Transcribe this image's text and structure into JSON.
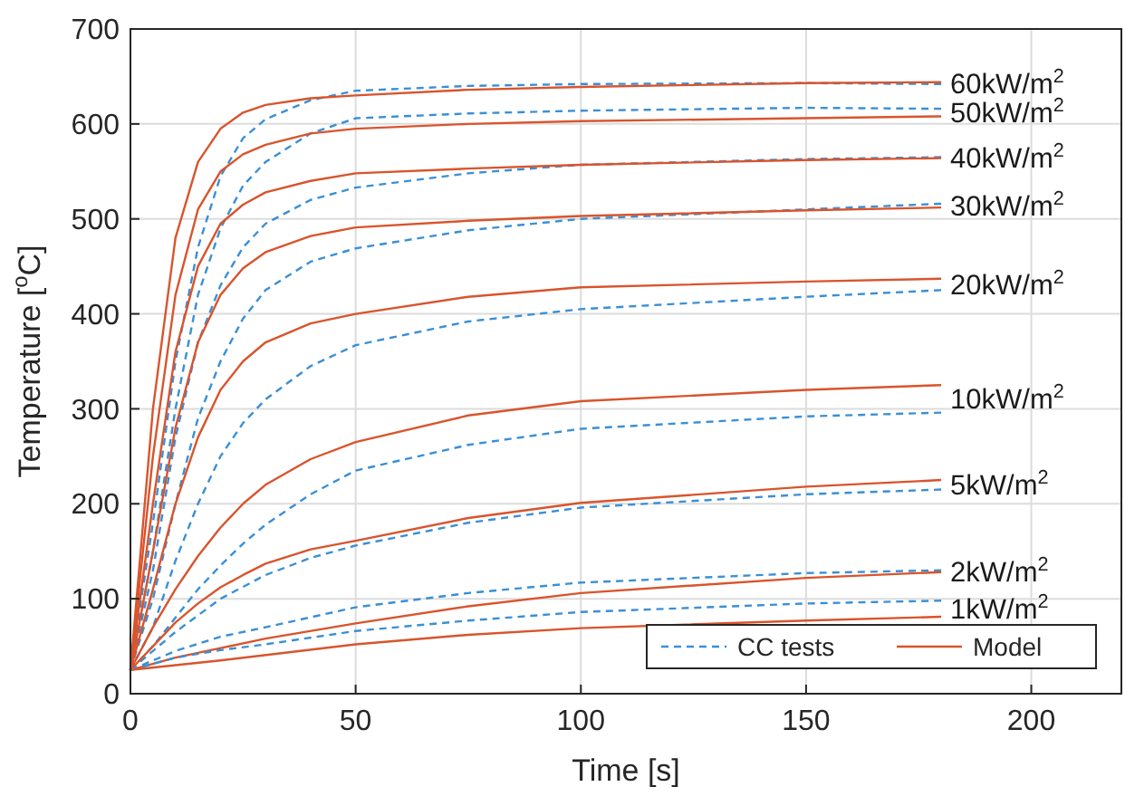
{
  "chart_data": {
    "type": "line",
    "xlabel": "Time [s]",
    "ylabel": "Temperature [$^{o}$C]",
    "xlim": [
      0,
      220
    ],
    "xticks": [
      0,
      50,
      100,
      150,
      200
    ],
    "ylim": [
      0,
      700
    ],
    "yticks": [
      0,
      100,
      200,
      300,
      400,
      500,
      600,
      700
    ],
    "grid": true,
    "legend": "bottom right",
    "marker": "none",
    "series": [
      {
        "name": "CC tests",
        "color": "#3a8fd6",
        "line_style": "dashed",
        "x": [
          0,
          5,
          10,
          15,
          20,
          25,
          30,
          40,
          50,
          75,
          100,
          150,
          180
        ],
        "values": [
          25,
          180,
          350,
          470,
          545,
          585,
          605,
          625,
          635,
          640,
          642,
          643,
          642
        ]
      },
      {
        "name": "Model",
        "color": "#d9542c",
        "line_style": "solid",
        "x": [
          0,
          5,
          10,
          15,
          20,
          25,
          30,
          40,
          50,
          75,
          100,
          125,
          150,
          180
        ],
        "values": [
          25,
          300,
          480,
          560,
          595,
          612,
          620,
          627,
          630,
          636,
          639,
          641,
          643,
          644
        ]
      },
      {
        "color": "#3a8fd6",
        "line_style": "dashed",
        "x": [
          0,
          5,
          10,
          15,
          20,
          25,
          30,
          40,
          50,
          75,
          100,
          150,
          180
        ],
        "values": [
          25,
          150,
          300,
          420,
          490,
          535,
          560,
          590,
          606,
          611,
          614,
          617,
          616
        ]
      },
      {
        "color": "#d9542c",
        "line_style": "solid",
        "x": [
          0,
          5,
          10,
          15,
          20,
          25,
          30,
          40,
          50,
          75,
          100,
          150,
          180
        ],
        "values": [
          25,
          250,
          420,
          510,
          550,
          568,
          578,
          590,
          595,
          600,
          603,
          606,
          608
        ]
      },
      {
        "color": "#3a8fd6",
        "line_style": "dashed",
        "x": [
          0,
          5,
          10,
          15,
          20,
          25,
          30,
          40,
          50,
          75,
          100,
          150,
          180
        ],
        "values": [
          25,
          130,
          270,
          370,
          430,
          470,
          495,
          520,
          533,
          548,
          557,
          563,
          565
        ]
      },
      {
        "color": "#d9542c",
        "line_style": "solid",
        "x": [
          0,
          5,
          10,
          15,
          20,
          25,
          30,
          40,
          50,
          75,
          100,
          150,
          180
        ],
        "values": [
          25,
          200,
          360,
          450,
          495,
          515,
          528,
          540,
          548,
          553,
          557,
          562,
          564
        ]
      },
      {
        "color": "#3a8fd6",
        "line_style": "dashed",
        "x": [
          0,
          5,
          10,
          15,
          20,
          25,
          30,
          40,
          50,
          75,
          100,
          150,
          180
        ],
        "values": [
          25,
          100,
          200,
          290,
          350,
          395,
          425,
          455,
          469,
          488,
          500,
          510,
          516
        ]
      },
      {
        "color": "#d9542c",
        "line_style": "solid",
        "x": [
          0,
          5,
          10,
          15,
          20,
          25,
          30,
          40,
          50,
          75,
          100,
          150,
          180
        ],
        "values": [
          25,
          150,
          280,
          370,
          420,
          448,
          465,
          482,
          491,
          498,
          503,
          509,
          512
        ]
      },
      {
        "color": "#3a8fd6",
        "line_style": "dashed",
        "x": [
          0,
          5,
          10,
          15,
          20,
          25,
          30,
          40,
          50,
          75,
          100,
          150,
          180
        ],
        "values": [
          25,
          70,
          140,
          200,
          250,
          285,
          310,
          345,
          367,
          392,
          405,
          418,
          425
        ]
      },
      {
        "color": "#d9542c",
        "line_style": "solid",
        "x": [
          0,
          5,
          10,
          15,
          20,
          25,
          30,
          40,
          50,
          75,
          100,
          150,
          180
        ],
        "values": [
          25,
          110,
          200,
          270,
          320,
          350,
          370,
          390,
          400,
          418,
          428,
          434,
          437
        ]
      },
      {
        "color": "#3a8fd6",
        "line_style": "dashed",
        "x": [
          0,
          5,
          10,
          15,
          20,
          25,
          30,
          40,
          50,
          75,
          100,
          150,
          180
        ],
        "values": [
          25,
          50,
          80,
          110,
          135,
          158,
          178,
          210,
          235,
          262,
          279,
          292,
          296
        ]
      },
      {
        "color": "#d9542c",
        "line_style": "solid",
        "x": [
          0,
          5,
          10,
          15,
          20,
          25,
          30,
          40,
          50,
          75,
          100,
          150,
          180
        ],
        "values": [
          25,
          70,
          110,
          145,
          175,
          200,
          220,
          247,
          265,
          293,
          308,
          320,
          325
        ]
      },
      {
        "color": "#3a8fd6",
        "line_style": "dashed",
        "x": [
          0,
          10,
          20,
          30,
          40,
          50,
          75,
          100,
          150,
          180
        ],
        "values": [
          25,
          65,
          100,
          125,
          143,
          156,
          180,
          196,
          210,
          215
        ]
      },
      {
        "color": "#d9542c",
        "line_style": "solid",
        "x": [
          0,
          5,
          10,
          15,
          20,
          25,
          30,
          40,
          50,
          75,
          100,
          150,
          180
        ],
        "values": [
          25,
          50,
          75,
          95,
          112,
          125,
          137,
          152,
          161,
          185,
          201,
          218,
          225
        ]
      },
      {
        "color": "#3a8fd6",
        "line_style": "dashed",
        "x": [
          0,
          10,
          20,
          30,
          50,
          75,
          100,
          150,
          180
        ],
        "values": [
          25,
          45,
          60,
          70,
          91,
          106,
          117,
          127,
          130
        ]
      },
      {
        "color": "#d9542c",
        "line_style": "solid",
        "x": [
          0,
          10,
          20,
          30,
          50,
          75,
          100,
          150,
          180
        ],
        "values": [
          25,
          38,
          48,
          58,
          74,
          92,
          106,
          122,
          128
        ]
      },
      {
        "color": "#3a8fd6",
        "line_style": "dashed",
        "x": [
          0,
          10,
          20,
          30,
          50,
          75,
          100,
          150,
          180
        ],
        "values": [
          25,
          38,
          46,
          52,
          66,
          77,
          86,
          95,
          98
        ]
      },
      {
        "color": "#d9542c",
        "line_style": "solid",
        "x": [
          0,
          20,
          50,
          75,
          100,
          150,
          180
        ],
        "values": [
          25,
          35,
          52,
          62,
          69,
          77,
          81
        ]
      }
    ],
    "annotations": [
      "60kW/m$^{2}$",
      "50kW/m$^{2}$",
      "40kW/m$^{2}$",
      "30kW/m$^{2}$",
      "20kW/m$^{2}$",
      "10kW/m$^{2}$",
      "5kW/m$^{2}$",
      "2kW/m$^{2}$",
      "1kW/m$^{2}$"
    ]
  }
}
